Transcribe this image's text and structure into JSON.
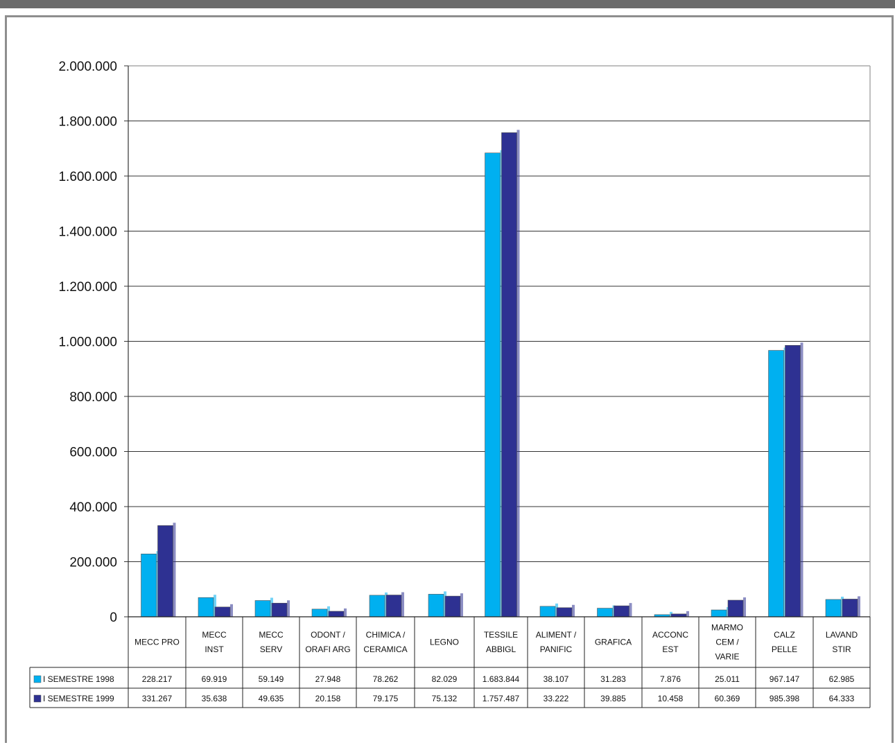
{
  "chart_data": {
    "type": "bar",
    "categories": [
      [
        "MECC PRO"
      ],
      [
        "MECC",
        "INST"
      ],
      [
        "MECC",
        "SERV"
      ],
      [
        "ODONT /",
        "ORAFI ARG"
      ],
      [
        "CHIMICA /",
        "CERAMICA"
      ],
      [
        "LEGNO"
      ],
      [
        "TESSILE",
        "ABBIGL"
      ],
      [
        "ALIMENT /",
        "PANIFIC"
      ],
      [
        "GRAFICA"
      ],
      [
        "ACCONC",
        "EST"
      ],
      [
        "MARMO",
        "CEM /",
        "VARIE"
      ],
      [
        "CALZ",
        "PELLE"
      ],
      [
        "LAVAND",
        "STIR"
      ]
    ],
    "series": [
      {
        "name": "I SEMESTRE 1998",
        "color": "#00b0f0",
        "values": [
          228217,
          69919,
          59149,
          27948,
          78262,
          82029,
          1683844,
          38107,
          31283,
          7876,
          25011,
          967147,
          62985
        ],
        "labels": [
          "228.217",
          "69.919",
          "59.149",
          "27.948",
          "78.262",
          "82.029",
          "1.683.844",
          "38.107",
          "31.283",
          "7.876",
          "25.011",
          "967.147",
          "62.985"
        ]
      },
      {
        "name": "I SEMESTRE 1999",
        "color": "#2e3192",
        "values": [
          331267,
          35638,
          49635,
          20158,
          79175,
          75132,
          1757487,
          33222,
          39885,
          10458,
          60369,
          985398,
          64333
        ],
        "labels": [
          "331.267",
          "35.638",
          "49.635",
          "20.158",
          "79.175",
          "75.132",
          "1.757.487",
          "33.222",
          "39.885",
          "10.458",
          "60.369",
          "985.398",
          "64.333"
        ]
      }
    ],
    "ylim": [
      0,
      2000000
    ],
    "yticks": [
      "0",
      "200.000",
      "400.000",
      "600.000",
      "800.000",
      "1.000.000",
      "1.200.000",
      "1.400.000",
      "1.600.000",
      "1.800.000",
      "2.000.000"
    ],
    "grid": true,
    "legend": "data-table"
  }
}
